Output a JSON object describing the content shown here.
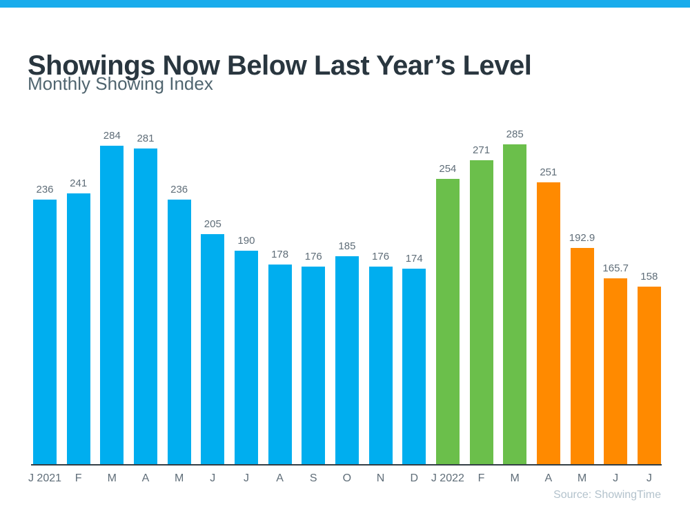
{
  "page": {
    "title": "Showings Now Below Last Year’s Level",
    "subtitle": "Monthly Showing Index",
    "source": "Source: ShowingTime"
  },
  "colors": {
    "accent_strip": "#19ACEC",
    "blue": "#00AEEF",
    "green": "#6BBF4B",
    "orange": "#FF8A00",
    "title_text": "#29363F",
    "subtitle_text": "#50656F",
    "label_text": "#5F6D78",
    "axis_line": "#333E45",
    "source_text": "#B3C2CC"
  },
  "chart_data": {
    "type": "bar",
    "title": "Showings Now Below Last Year’s Level",
    "subtitle": "Monthly Showing Index",
    "source": "Source: ShowingTime",
    "ylim": [
      0,
      285
    ],
    "grid": false,
    "legend": false,
    "categories": [
      "J 2021",
      "F",
      "M",
      "A",
      "M",
      "J",
      "J",
      "A",
      "S",
      "O",
      "N",
      "D",
      "J 2022",
      "F",
      "M",
      "A",
      "M",
      "J",
      "J"
    ],
    "bars": [
      {
        "label": "J 2021",
        "value": 236,
        "color": "blue"
      },
      {
        "label": "F",
        "value": 241,
        "color": "blue"
      },
      {
        "label": "M",
        "value": 284,
        "color": "blue"
      },
      {
        "label": "A",
        "value": 281,
        "color": "blue"
      },
      {
        "label": "M",
        "value": 236,
        "color": "blue"
      },
      {
        "label": "J",
        "value": 205,
        "color": "blue"
      },
      {
        "label": "J",
        "value": 190,
        "color": "blue"
      },
      {
        "label": "A",
        "value": 178,
        "color": "blue"
      },
      {
        "label": "S",
        "value": 176,
        "color": "blue"
      },
      {
        "label": "O",
        "value": 185,
        "color": "blue"
      },
      {
        "label": "N",
        "value": 176,
        "color": "blue"
      },
      {
        "label": "D",
        "value": 174,
        "color": "blue"
      },
      {
        "label": "J 2022",
        "value": 254,
        "color": "green"
      },
      {
        "label": "F",
        "value": 271,
        "color": "green"
      },
      {
        "label": "M",
        "value": 285,
        "color": "green"
      },
      {
        "label": "A",
        "value": 251,
        "color": "orange"
      },
      {
        "label": "M",
        "value": 192.9,
        "color": "orange"
      },
      {
        "label": "J",
        "value": 165.7,
        "color": "orange"
      },
      {
        "label": "J",
        "value": 158,
        "color": "orange"
      }
    ]
  }
}
